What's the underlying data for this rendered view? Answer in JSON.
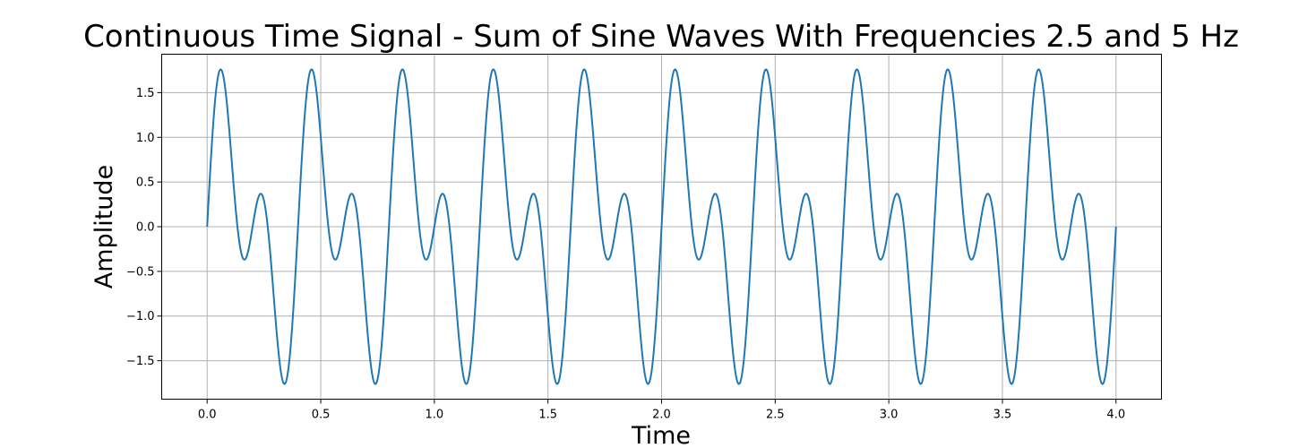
{
  "chart_data": {
    "type": "line",
    "title": "Continuous Time Signal - Sum of Sine Waves With Frequencies 2.5 and 5 Hz",
    "xlabel": "Time",
    "ylabel": "Amplitude",
    "xlim": [
      -0.2,
      4.2
    ],
    "ylim": [
      -1.93,
      1.93
    ],
    "xticks": [
      0.0,
      0.5,
      1.0,
      1.5,
      2.0,
      2.5,
      3.0,
      3.5,
      4.0
    ],
    "xtick_labels": [
      "0.0",
      "0.5",
      "1.0",
      "1.5",
      "2.0",
      "2.5",
      "3.0",
      "3.5",
      "4.0"
    ],
    "yticks": [
      -1.5,
      -1.0,
      -0.5,
      0.0,
      0.5,
      1.0,
      1.5
    ],
    "ytick_labels": [
      "−1.5",
      "−1.0",
      "−0.5",
      "0.0",
      "0.5",
      "1.0",
      "1.5"
    ],
    "grid": true,
    "series": [
      {
        "color": "#1f77b4",
        "x_range": [
          0,
          4
        ],
        "components": [
          {
            "amplitude": 1,
            "frequency": 2.5
          },
          {
            "amplitude": 1,
            "frequency": 5
          }
        ]
      }
    ]
  }
}
